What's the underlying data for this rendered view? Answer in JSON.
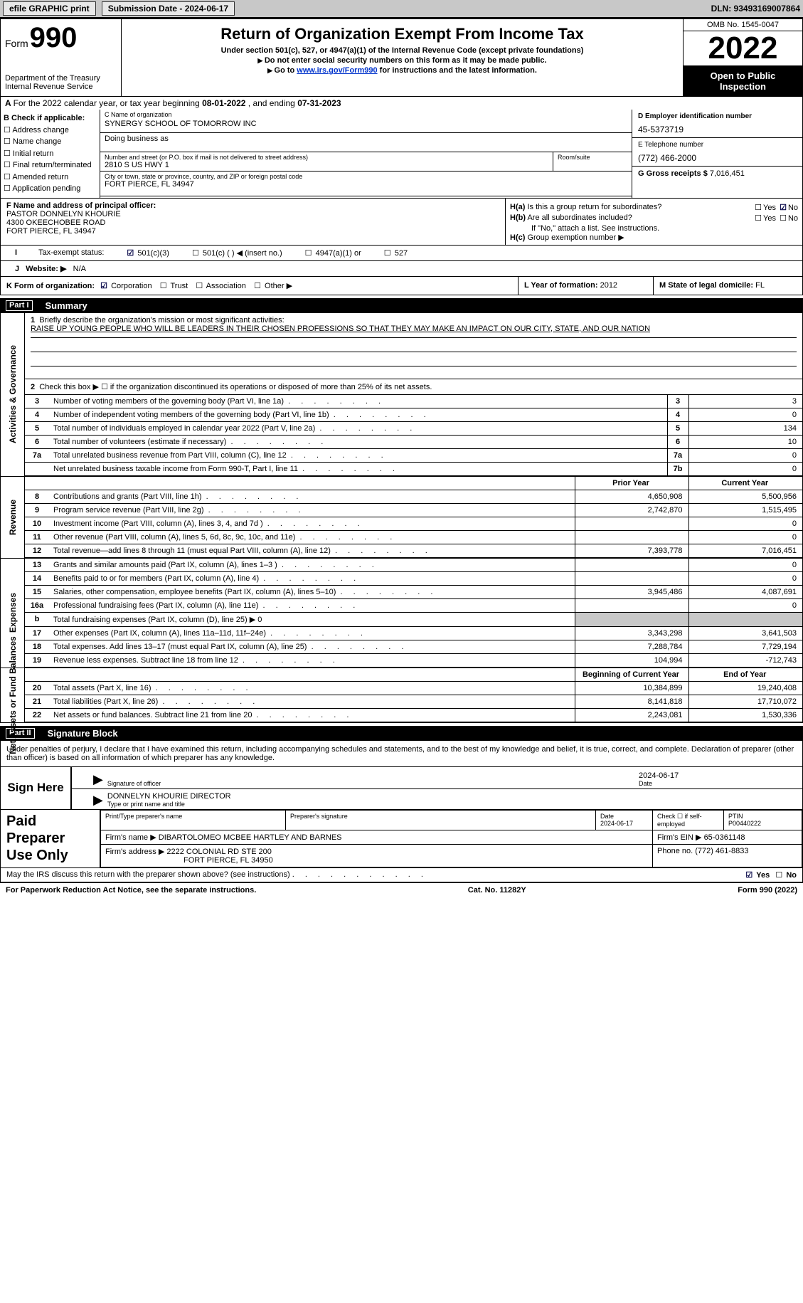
{
  "topbar": {
    "efile": "efile GRAPHIC print",
    "sub_label": "Submission Date - 2024-06-17",
    "dln": "DLN: 93493169007864"
  },
  "header": {
    "form_label": "Form",
    "form_num": "990",
    "dept": "Department of the Treasury\nInternal Revenue Service",
    "title": "Return of Organization Exempt From Income Tax",
    "sub1": "Under section 501(c), 527, or 4947(a)(1) of the Internal Revenue Code (except private foundations)",
    "sub2": "Do not enter social security numbers on this form as it may be made public.",
    "sub3": "Go to www.irs.gov/Form990 for instructions and the latest information.",
    "link": "www.irs.gov/Form990",
    "omb": "OMB No. 1545-0047",
    "year": "2022",
    "inspect": "Open to Public Inspection"
  },
  "line_a": {
    "text_pre": "For the 2022 calendar year, or tax year beginning ",
    "begin": "08-01-2022",
    "mid": " , and ending ",
    "end": "07-31-2023"
  },
  "section_b": {
    "label": "B Check if applicable:",
    "items": [
      "Address change",
      "Name change",
      "Initial return",
      "Final return/terminated",
      "Amended return",
      "Application pending"
    ]
  },
  "section_c": {
    "name_label": "C Name of organization",
    "name": "SYNERGY SCHOOL OF TOMORROW INC",
    "dba_label": "Doing business as",
    "street_label": "Number and street (or P.O. box if mail is not delivered to street address)",
    "street": "2810 S US HWY 1",
    "room_label": "Room/suite",
    "city_label": "City or town, state or province, country, and ZIP or foreign postal code",
    "city": "FORT PIERCE, FL  34947"
  },
  "section_d": {
    "label": "D Employer identification number",
    "value": "45-5373719"
  },
  "section_e": {
    "label": "E Telephone number",
    "value": "(772) 466-2000"
  },
  "section_g": {
    "label": "G Gross receipts $",
    "value": "7,016,451"
  },
  "section_f": {
    "label": "F Name and address of principal officer:",
    "name": "PASTOR DONNELYN KHOURIE",
    "addr1": "4300 OKEECHOBEE ROAD",
    "addr2": "FORT PIERCE, FL  34947"
  },
  "section_h": {
    "ha": "Is this a group return for subordinates?",
    "hb": "Are all subordinates included?",
    "hc_note": "If \"No,\" attach a list. See instructions.",
    "hc": "Group exemption number",
    "yes": "Yes",
    "no": "No"
  },
  "line_i": {
    "label": "Tax-exempt status:",
    "o1": "501(c)(3)",
    "o2": "501(c) (  ) ◀ (insert no.)",
    "o3": "4947(a)(1) or",
    "o4": "527"
  },
  "line_j": {
    "label": "Website: ▶",
    "value": "N/A"
  },
  "line_k": {
    "label": "K Form of organization:",
    "o1": "Corporation",
    "o2": "Trust",
    "o3": "Association",
    "o4": "Other ▶"
  },
  "line_l": {
    "label": "L Year of formation:",
    "value": "2012"
  },
  "line_m": {
    "label": "M State of legal domicile:",
    "value": "FL"
  },
  "part1": {
    "num": "Part I",
    "title": "Summary"
  },
  "summary": {
    "m1_label": "Briefly describe the organization's mission or most significant activities:",
    "mission": "RAISE UP YOUNG PEOPLE WHO WILL BE LEADERS IN THEIR CHOSEN PROFESSIONS SO THAT THEY MAY MAKE AN IMPACT ON OUR CITY, STATE, AND OUR NATION",
    "m2": "Check this box ▶ ☐  if the organization discontinued its operations or disposed of more than 25% of its net assets.",
    "rows_gov": [
      {
        "n": "3",
        "d": "Number of voting members of the governing body (Part VI, line 1a)",
        "box": "3",
        "v": "3"
      },
      {
        "n": "4",
        "d": "Number of independent voting members of the governing body (Part VI, line 1b)",
        "box": "4",
        "v": "0"
      },
      {
        "n": "5",
        "d": "Total number of individuals employed in calendar year 2022 (Part V, line 2a)",
        "box": "5",
        "v": "134"
      },
      {
        "n": "6",
        "d": "Total number of volunteers (estimate if necessary)",
        "box": "6",
        "v": "10"
      },
      {
        "n": "7a",
        "d": "Total unrelated business revenue from Part VIII, column (C), line 12",
        "box": "7a",
        "v": "0"
      },
      {
        "n": "",
        "d": "Net unrelated business taxable income from Form 990-T, Part I, line 11",
        "box": "7b",
        "v": "0"
      }
    ],
    "col_prior": "Prior Year",
    "col_curr": "Current Year",
    "rows_rev": [
      {
        "n": "8",
        "d": "Contributions and grants (Part VIII, line 1h)",
        "p": "4,650,908",
        "c": "5,500,956"
      },
      {
        "n": "9",
        "d": "Program service revenue (Part VIII, line 2g)",
        "p": "2,742,870",
        "c": "1,515,495"
      },
      {
        "n": "10",
        "d": "Investment income (Part VIII, column (A), lines 3, 4, and 7d )",
        "p": "",
        "c": "0"
      },
      {
        "n": "11",
        "d": "Other revenue (Part VIII, column (A), lines 5, 6d, 8c, 9c, 10c, and 11e)",
        "p": "",
        "c": "0"
      },
      {
        "n": "12",
        "d": "Total revenue—add lines 8 through 11 (must equal Part VIII, column (A), line 12)",
        "p": "7,393,778",
        "c": "7,016,451"
      }
    ],
    "rows_exp": [
      {
        "n": "13",
        "d": "Grants and similar amounts paid (Part IX, column (A), lines 1–3 )",
        "p": "",
        "c": "0"
      },
      {
        "n": "14",
        "d": "Benefits paid to or for members (Part IX, column (A), line 4)",
        "p": "",
        "c": "0"
      },
      {
        "n": "15",
        "d": "Salaries, other compensation, employee benefits (Part IX, column (A), lines 5–10)",
        "p": "3,945,486",
        "c": "4,087,691"
      },
      {
        "n": "16a",
        "d": "Professional fundraising fees (Part IX, column (A), line 11e)",
        "p": "",
        "c": "0"
      },
      {
        "n": "b",
        "d": "Total fundraising expenses (Part IX, column (D), line 25) ▶ 0",
        "p": "GRAY",
        "c": "GRAY"
      },
      {
        "n": "17",
        "d": "Other expenses (Part IX, column (A), lines 11a–11d, 11f–24e)",
        "p": "3,343,298",
        "c": "3,641,503"
      },
      {
        "n": "18",
        "d": "Total expenses. Add lines 13–17 (must equal Part IX, column (A), line 25)",
        "p": "7,288,784",
        "c": "7,729,194"
      },
      {
        "n": "19",
        "d": "Revenue less expenses. Subtract line 18 from line 12",
        "p": "104,994",
        "c": "-712,743"
      }
    ],
    "col_beg": "Beginning of Current Year",
    "col_end": "End of Year",
    "rows_net": [
      {
        "n": "20",
        "d": "Total assets (Part X, line 16)",
        "p": "10,384,899",
        "c": "19,240,408"
      },
      {
        "n": "21",
        "d": "Total liabilities (Part X, line 26)",
        "p": "8,141,818",
        "c": "17,710,072"
      },
      {
        "n": "22",
        "d": "Net assets or fund balances. Subtract line 21 from line 20",
        "p": "2,243,081",
        "c": "1,530,336"
      }
    ],
    "side_gov": "Activities & Governance",
    "side_rev": "Revenue",
    "side_exp": "Expenses",
    "side_net": "Net Assets or Fund Balances"
  },
  "part2": {
    "num": "Part II",
    "title": "Signature Block"
  },
  "sig": {
    "text": "Under penalties of perjury, I declare that I have examined this return, including accompanying schedules and statements, and to the best of my knowledge and belief, it is true, correct, and complete. Declaration of preparer (other than officer) is based on all information of which preparer has any knowledge.",
    "sign_here": "Sign Here",
    "sig_officer": "Signature of officer",
    "date": "2024-06-17",
    "date_label": "Date",
    "print_name": "DONNELYN KHOURIE  DIRECTOR",
    "print_label": "Type or print name and title"
  },
  "paid": {
    "label": "Paid Preparer Use Only",
    "c_print": "Print/Type preparer's name",
    "c_sig": "Preparer's signature",
    "c_date": "Date",
    "c_date_v": "2024-06-17",
    "c_check": "Check ☐ if self-employed",
    "c_ptin": "PTIN",
    "c_ptin_v": "P00440222",
    "firm_name_l": "Firm's name    ▶",
    "firm_name": "DIBARTOLOMEO MCBEE HARTLEY AND BARNES",
    "firm_ein_l": "Firm's EIN ▶",
    "firm_ein": "65-0361148",
    "firm_addr_l": "Firm's address ▶",
    "firm_addr1": "2222 COLONIAL RD STE 200",
    "firm_addr2": "FORT PIERCE, FL  34950",
    "phone_l": "Phone no.",
    "phone": "(772) 461-8833"
  },
  "discuss": {
    "text": "May the IRS discuss this return with the preparer shown above? (see instructions)",
    "yes": "Yes",
    "no": "No"
  },
  "footer": {
    "left": "For Paperwork Reduction Act Notice, see the separate instructions.",
    "mid": "Cat. No. 11282Y",
    "right": "Form 990 (2022)"
  }
}
